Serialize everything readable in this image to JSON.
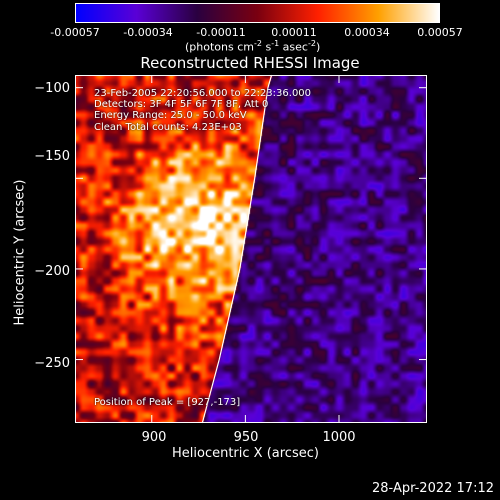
{
  "colorbar": {
    "tick_labels": [
      "-0.00057",
      "-0.00034",
      "-0.00011",
      "0.00011",
      "0.00034",
      "0.00057"
    ],
    "units_label": "(photons cm",
    "units_sup1": "-2",
    "units_mid": " s",
    "units_sup2": "-1",
    "units_end": " asec",
    "units_sup3": "-2",
    "units_close": ")",
    "colors": [
      "#0000ff",
      "#5a00d6",
      "#2a0040",
      "#7a0010",
      "#ff2000",
      "#ffa000",
      "#ffffff"
    ]
  },
  "chart_data": {
    "type": "heatmap",
    "title": "Reconstructed RHESSI Image",
    "xlabel": "Heliocentric X (arcsec)",
    "ylabel": "Heliocentric Y (arcsec)",
    "xlim": [
      859,
      1047
    ],
    "ylim": [
      -285,
      -93
    ],
    "x_ticks": [
      900,
      950,
      1000
    ],
    "y_ticks": [
      -100,
      -150,
      -200,
      -250
    ],
    "x_tick_labels": [
      "900",
      "950",
      "1000"
    ],
    "y_tick_labels": [
      "−100",
      "−150",
      "−200",
      "−250"
    ],
    "value_range": [
      -0.00057,
      0.00057
    ],
    "peak": {
      "x": 927,
      "y": -173
    },
    "limb_line": [
      [
        927,
        -285
      ],
      [
        936,
        -250
      ],
      [
        947,
        -200
      ],
      [
        955,
        -150
      ],
      [
        962,
        -100
      ],
      [
        964,
        -93
      ]
    ],
    "annotations": [
      "23-Feb-2005 22:20:56.000 to 22:23:36.000",
      "Detectors: 3F 4F 5F 6F 7F 8F, Att 0",
      "Energy Range: 25.0 - 50.0 keV",
      "Clean    Total counts: 4.23E+03"
    ],
    "peak_label": "Position of Peak = [927,-173]"
  },
  "footer": {
    "timestamp": "28-Apr-2022 17:12"
  }
}
